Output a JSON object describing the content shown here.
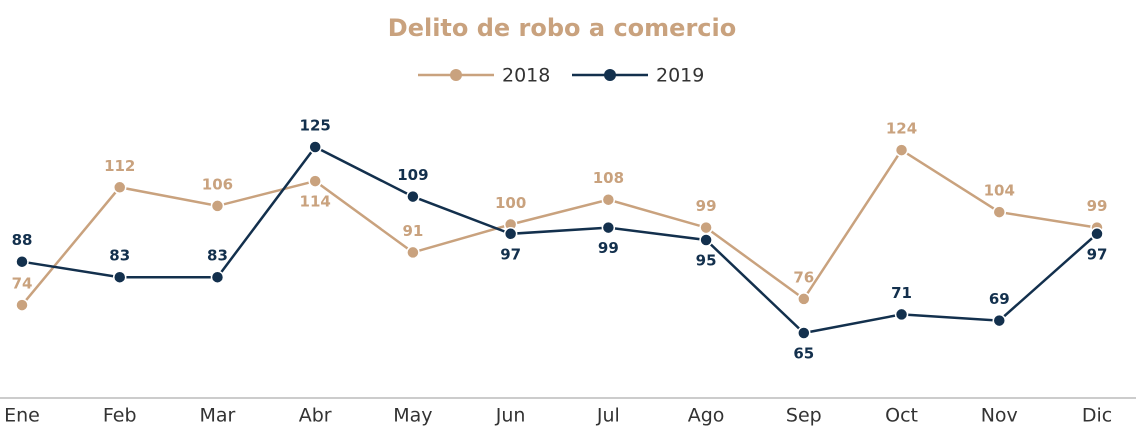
{
  "chart_data": {
    "type": "line",
    "title": "Delito de robo a comercio",
    "categories": [
      "Ene",
      "Feb",
      "Mar",
      "Abr",
      "May",
      "Jun",
      "Jul",
      "Ago",
      "Sep",
      "Oct",
      "Nov",
      "Dic"
    ],
    "series": [
      {
        "name": "2018",
        "color": "#c9a27e",
        "values": [
          74,
          112,
          106,
          114,
          91,
          100,
          108,
          99,
          76,
          124,
          104,
          99
        ]
      },
      {
        "name": "2019",
        "color": "#13304d",
        "values": [
          88,
          83,
          83,
          125,
          109,
          97,
          99,
          95,
          65,
          71,
          69,
          97
        ]
      }
    ],
    "legend": "top",
    "grid": false
  }
}
